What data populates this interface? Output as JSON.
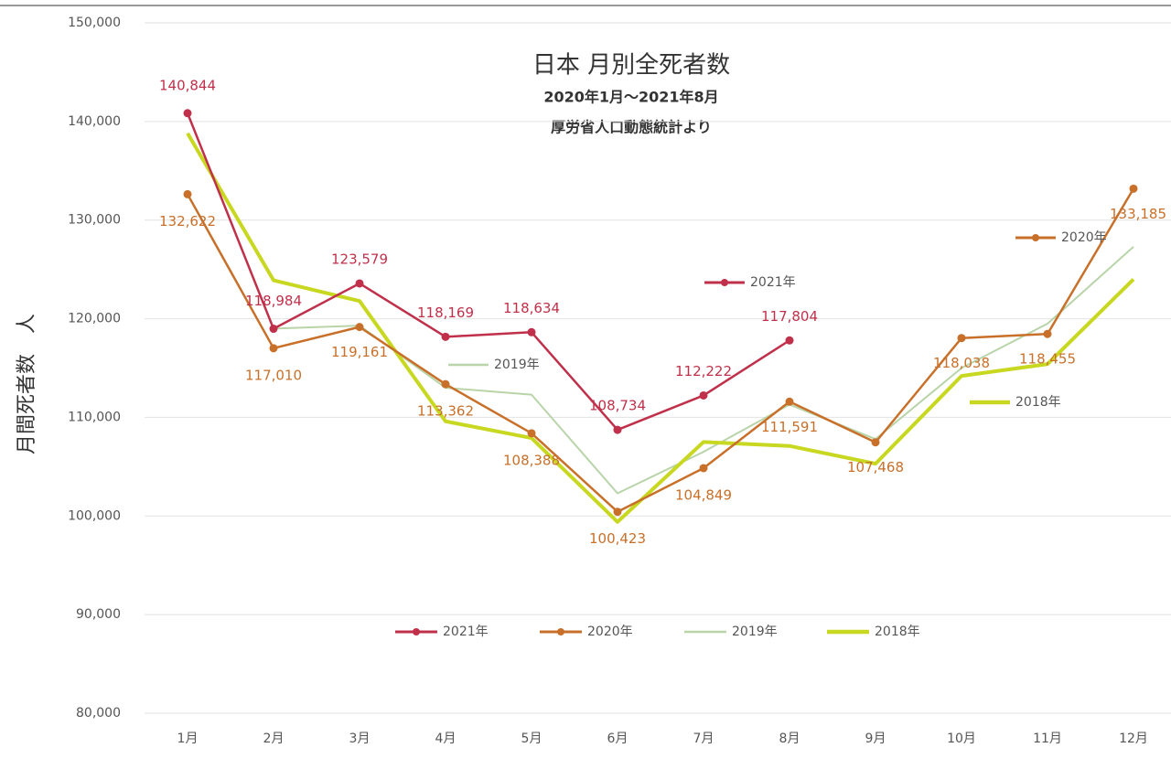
{
  "chart_data": {
    "type": "line",
    "title": "日本 月別全死者数",
    "subtitle": [
      "2020年1月～2021年8月",
      "厚労省人口動態統計より"
    ],
    "y_label": "月間死者数　人",
    "categories": [
      "1月",
      "2月",
      "3月",
      "4月",
      "5月",
      "6月",
      "7月",
      "8月",
      "9月",
      "10月",
      "11月",
      "12月"
    ],
    "ylim": [
      80000,
      150000
    ],
    "yticks": [
      {
        "value": 80000,
        "label": "80,000"
      },
      {
        "value": 90000,
        "label": "90,000"
      },
      {
        "value": 100000,
        "label": "100,000"
      },
      {
        "value": 110000,
        "label": "110,000"
      },
      {
        "value": 120000,
        "label": "120,000"
      },
      {
        "value": 130000,
        "label": "130,000"
      },
      {
        "value": 140000,
        "label": "140,000"
      },
      {
        "value": 150000,
        "label": "150,000"
      }
    ],
    "grid": true,
    "series": [
      {
        "name": "2021年",
        "color": "#c0304a",
        "marker": true,
        "values": [
          140844,
          118984,
          123579,
          118169,
          118634,
          108734,
          112222,
          117804,
          null,
          null,
          null,
          null
        ],
        "value_labels": [
          "140,844",
          "118,984",
          "123,579",
          "118,169",
          "118,634",
          "108,734",
          "112,222",
          "117,804",
          null,
          null,
          null,
          null
        ]
      },
      {
        "name": "2020年",
        "color": "#c8702a",
        "marker": true,
        "values": [
          132622,
          117010,
          119161,
          113362,
          108388,
          100423,
          104849,
          111591,
          107468,
          118038,
          118455,
          133185
        ],
        "value_labels": [
          "132,622",
          "117,010",
          "119,161",
          "113,362",
          "108,388",
          "100,423",
          "104,849",
          "111,591",
          "107,468",
          "118,038",
          "118,455",
          "133,185"
        ]
      },
      {
        "name": "2019年",
        "color": "#b8d4a8",
        "marker": false,
        "values": [
          140800,
          119000,
          119300,
          113000,
          112300,
          102300,
          106500,
          111300,
          107800,
          115000,
          119500,
          127300
        ]
      },
      {
        "name": "2018年",
        "color": "#c8d820",
        "marker": false,
        "values": [
          138800,
          123900,
          121800,
          109600,
          107900,
          99400,
          107500,
          107100,
          105300,
          114200,
          115400,
          124000
        ]
      }
    ]
  }
}
